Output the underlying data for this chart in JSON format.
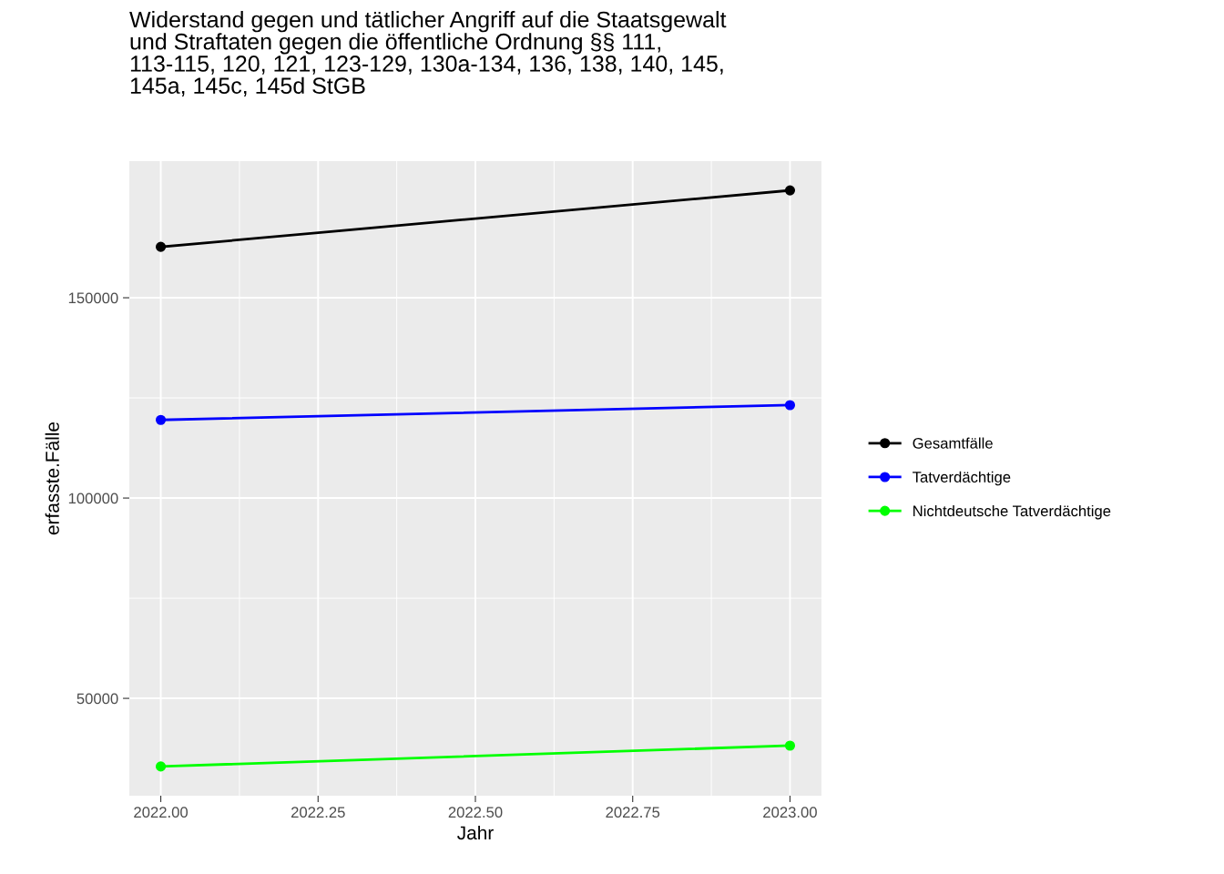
{
  "chart_data": {
    "type": "line",
    "title": "Widerstand gegen und tätlicher Angriff auf die Staatsgewalt\nund Straftaten gegen die öffentliche Ordnung §§ 111,\n113-115, 120, 121, 123-129, 130a-134, 136, 138, 140, 145,\n145a, 145c, 145d StGB",
    "xlabel": "Jahr",
    "ylabel": "erfasste.Fälle",
    "x": [
      2022,
      2023
    ],
    "series": [
      {
        "name": "Gesamtfälle",
        "color": "#000000",
        "values": [
          162700,
          176800
        ]
      },
      {
        "name": "Tatverdächtige",
        "color": "#0000ff",
        "values": [
          119500,
          123200
        ]
      },
      {
        "name": "Nichtdeutsche Tatverdächtige",
        "color": "#00ff00",
        "values": [
          33000,
          38200
        ]
      }
    ],
    "xlim": [
      2021.95,
      2023.05
    ],
    "xticks": [
      {
        "value": 2022,
        "label": "2022.00"
      },
      {
        "value": 2022.25,
        "label": "2022.25"
      },
      {
        "value": 2022.5,
        "label": "2022.50"
      },
      {
        "value": 2022.75,
        "label": "2022.75"
      },
      {
        "value": 2023,
        "label": "2023.00"
      }
    ],
    "ylim": [
      25700,
      184100
    ],
    "yticks": [
      50000,
      100000,
      150000
    ],
    "grid": true,
    "legend": "right",
    "marker": "circle",
    "line_style": "solid"
  }
}
